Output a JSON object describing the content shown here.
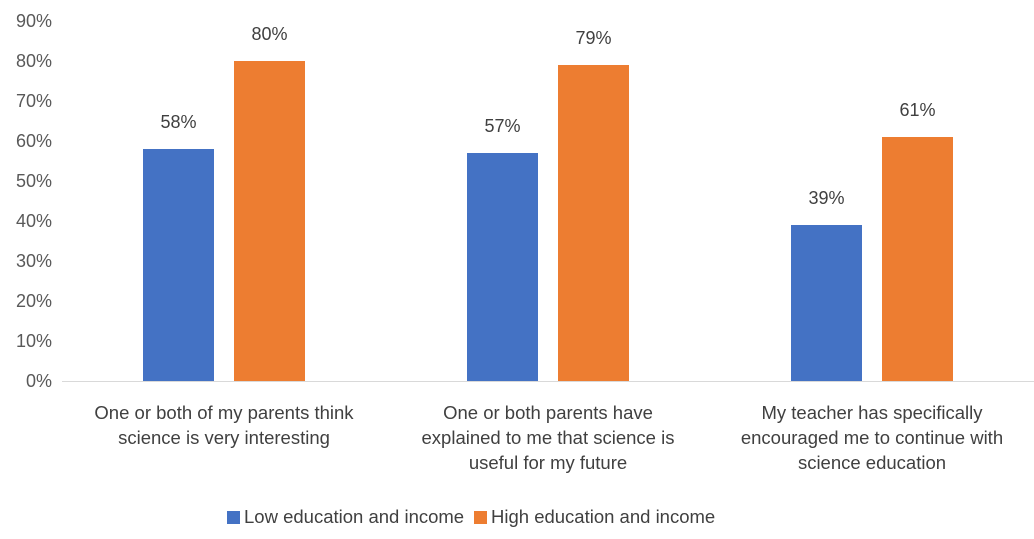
{
  "chart_data": {
    "type": "bar",
    "categories": [
      [
        "One or both of my parents think",
        "science is very interesting"
      ],
      [
        "One or both parents have",
        "explained to me that science is",
        "useful for my future"
      ],
      [
        "My teacher has specifically",
        "encouraged me to continue with",
        "science education"
      ]
    ],
    "series": [
      {
        "name": "Low education and income",
        "color": "#4472C4",
        "values": [
          58,
          57,
          39
        ],
        "labels": [
          "58%",
          "57%",
          "39%"
        ]
      },
      {
        "name": "High education and income",
        "color": "#ED7D31",
        "values": [
          80,
          79,
          61
        ],
        "labels": [
          "80%",
          "79%",
          "61%"
        ]
      }
    ],
    "y_ticks": [
      "0%",
      "10%",
      "20%",
      "30%",
      "40%",
      "50%",
      "60%",
      "70%",
      "80%",
      "90%"
    ],
    "ylim": [
      0,
      90
    ],
    "legend_position": "bottom",
    "grid": false
  }
}
